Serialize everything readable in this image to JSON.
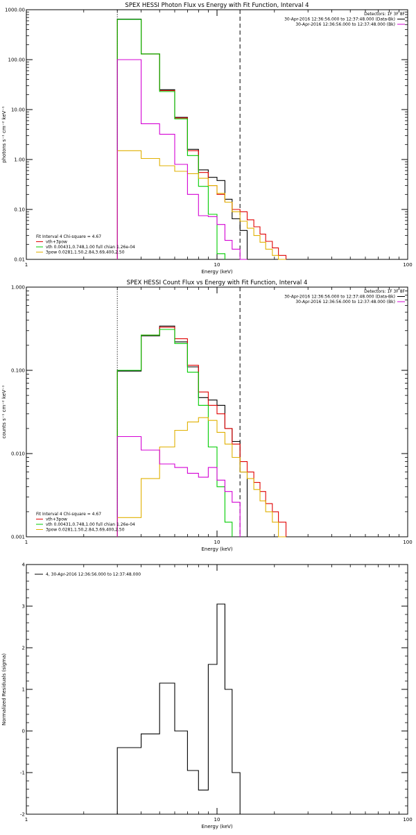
{
  "chart_data": [
    {
      "type": "line",
      "title": "SPEX HESSI Photon Flux vs Energy with Fit Function, Interval 4",
      "xlabel": "Energy (keV)",
      "ylabel": "photons s⁻¹ cm⁻² keV⁻¹",
      "xscale": "log",
      "yscale": "log",
      "xlim": [
        1,
        100
      ],
      "ylim": [
        0.01,
        1000
      ],
      "xticks": [
        1,
        10,
        100
      ],
      "xtick_labels": [
        "1",
        "10",
        "100"
      ],
      "yticks": [
        0.01,
        0.1,
        1,
        10,
        100,
        1000
      ],
      "ytick_labels": [
        "0.01",
        "0.10",
        "1.00",
        "10.00",
        "100.00",
        "1000.00"
      ],
      "legend_top": {
        "detectors": "Detectors: 1F 3F 8F",
        "entries": [
          {
            "label": "30-Apr-2016 12:36:56.000 to 12:37:48.000 (Data-Bk)",
            "color": "#000000"
          },
          {
            "label": "30-Apr-2016 12:36:56.000 to 12:37:48.000 (Bk)",
            "color": "#d400d4"
          }
        ]
      },
      "legend_bottom": {
        "heading": "Fit Interval 4   Chi-square = 4.67",
        "entries": [
          {
            "label": "vth+3pow",
            "color": "#e00000"
          },
          {
            "label": "vth 0.00431,0.748,1.00  full chian 1.26e-04",
            "color": "#00cc00"
          },
          {
            "label": "3pow 0.0281,1.50,2.84,3.69,400,2.50",
            "color": "#e0b000"
          }
        ]
      },
      "vlines": [
        {
          "x": 3.0,
          "style": "dotted",
          "color": "#000000"
        },
        {
          "x": 13.2,
          "style": "dashed",
          "color": "#000000"
        }
      ],
      "bin_edges": [
        3.0,
        4.0,
        5.0,
        6.0,
        7.0,
        8.0,
        9.0,
        10.0,
        11.0,
        12.0,
        13.2,
        14.4,
        15.6,
        16.8,
        18.0,
        19.5,
        21.0,
        23.0
      ],
      "series": [
        {
          "name": "Data-Bk",
          "color": "#000000",
          "values": [
            650,
            130,
            25,
            7,
            1.6,
            0.62,
            0.44,
            0.38,
            0.16,
            0.065,
            0.038
          ]
        },
        {
          "name": "vth+3pow",
          "color": "#e00000",
          "values": [
            640,
            130,
            24,
            6.8,
            1.5,
            0.55,
            0.3,
            0.2,
            0.14,
            0.1,
            0.09,
            0.062,
            0.045,
            0.032,
            0.023,
            0.017,
            0.012
          ]
        },
        {
          "name": "vth",
          "color": "#00cc00",
          "values": [
            640,
            130,
            23,
            6.5,
            1.2,
            0.29,
            0.08,
            0.013
          ]
        },
        {
          "name": "3pow",
          "color": "#e0b000",
          "values": [
            1.5,
            1.05,
            0.75,
            0.58,
            0.52,
            0.42,
            0.3,
            0.21,
            0.14,
            0.09,
            0.058,
            0.042,
            0.03,
            0.022,
            0.016,
            0.012,
            0.01
          ]
        },
        {
          "name": "Bk",
          "color": "#d400d4",
          "values": [
            100,
            5.2,
            3.2,
            0.8,
            0.2,
            0.075,
            0.072,
            0.05,
            0.024,
            0.016,
            0.01
          ]
        }
      ]
    },
    {
      "type": "line",
      "title": "SPEX HESSI Count Flux vs Energy with Fit Function, Interval 4",
      "xlabel": "Energy (keV)",
      "ylabel": "counts s⁻¹ cm⁻² keV⁻¹",
      "xscale": "log",
      "yscale": "log",
      "xlim": [
        1,
        100
      ],
      "ylim": [
        0.001,
        1
      ],
      "xticks": [
        1,
        10,
        100
      ],
      "xtick_labels": [
        "1",
        "10",
        "100"
      ],
      "yticks": [
        0.001,
        0.01,
        0.1,
        1
      ],
      "ytick_labels": [
        "0.001",
        "0.010",
        "0.100",
        "1.000"
      ],
      "legend_top": {
        "detectors": "Detectors: 1F 3F 8F",
        "entries": [
          {
            "label": "30-Apr-2016 12:36:56.000 to 12:37:48.000 (Data-Bk)",
            "color": "#000000"
          },
          {
            "label": "30-Apr-2016 12:36:56.000 to 12:37:48.000 (Bk)",
            "color": "#d400d4"
          }
        ]
      },
      "legend_bottom": {
        "heading": "Fit Interval 4   Chi-square = 4.67",
        "entries": [
          {
            "label": "vth+3pow",
            "color": "#e00000"
          },
          {
            "label": "vth 0.00431,0.748,1.00  full chian 1.26e-04",
            "color": "#00cc00"
          },
          {
            "label": "3pow 0.0281,1.50,2.84,3.69,400,2.50",
            "color": "#e0b000"
          }
        ]
      },
      "vlines": [
        {
          "x": 3.0,
          "style": "dotted",
          "color": "#000000"
        },
        {
          "x": 13.2,
          "style": "dashed",
          "color": "#000000"
        }
      ],
      "bin_edges": [
        3.0,
        4.0,
        5.0,
        6.0,
        7.0,
        8.0,
        9.0,
        10.0,
        11.0,
        12.0,
        13.2,
        14.4,
        15.6,
        16.8,
        18.0,
        19.5,
        21.0,
        23.0
      ],
      "series": [
        {
          "name": "Data-Bk",
          "color": "#000000",
          "values": [
            0.098,
            0.26,
            0.34,
            0.22,
            0.11,
            0.047,
            0.044,
            0.038,
            0.02,
            0.014,
            0.006
          ]
        },
        {
          "name": "vth+3pow",
          "color": "#e00000",
          "values": [
            0.1,
            0.265,
            0.33,
            0.24,
            0.115,
            0.055,
            0.038,
            0.03,
            0.02,
            0.013,
            0.008,
            0.006,
            0.0045,
            0.0035,
            0.0025,
            0.002,
            0.0015
          ]
        },
        {
          "name": "vth",
          "color": "#00cc00",
          "values": [
            0.1,
            0.265,
            0.31,
            0.21,
            0.095,
            0.038,
            0.012,
            0.004,
            0.0015
          ]
        },
        {
          "name": "3pow",
          "color": "#e0b000",
          "values": [
            0.0017,
            0.005,
            0.012,
            0.019,
            0.024,
            0.027,
            0.025,
            0.018,
            0.013,
            0.009,
            0.006,
            0.005,
            0.0037,
            0.0027,
            0.002,
            0.0015,
            0.001
          ]
        },
        {
          "name": "Bk",
          "color": "#d400d4",
          "values": [
            0.016,
            0.011,
            0.0075,
            0.0068,
            0.0058,
            0.0052,
            0.0068,
            0.0048,
            0.0035,
            0.0026
          ]
        }
      ]
    },
    {
      "type": "line",
      "title": "",
      "xlabel": "Energy (keV)",
      "ylabel": "Normalized Residuals (sigma)",
      "xscale": "log",
      "yscale": "linear",
      "xlim": [
        1,
        100
      ],
      "ylim": [
        -2,
        4
      ],
      "xticks": [
        1,
        10,
        100
      ],
      "xtick_labels": [
        "1",
        "10",
        "100"
      ],
      "yticks": [
        -2,
        -1,
        0,
        1,
        2,
        3,
        4
      ],
      "ytick_labels": [
        "-2",
        "-1",
        "0",
        "1",
        "2",
        "3",
        "4"
      ],
      "legend_top": {
        "entries": [
          {
            "label": "4, 30-Apr-2016 12:36:56.000 to 12:37:48.000",
            "color": "#000000"
          }
        ]
      },
      "bin_edges": [
        3.0,
        4.0,
        5.0,
        6.0,
        7.0,
        8.0,
        9.0,
        10.0,
        11.0,
        12.0,
        13.2
      ],
      "series": [
        {
          "name": "4, 30-Apr-2016 12:36:56.000 to 12:37:48.000",
          "color": "#000000",
          "values": [
            -0.4,
            -0.07,
            1.15,
            0.0,
            -0.95,
            -1.42,
            1.6,
            3.05,
            1.0,
            -1.0
          ]
        }
      ]
    }
  ]
}
